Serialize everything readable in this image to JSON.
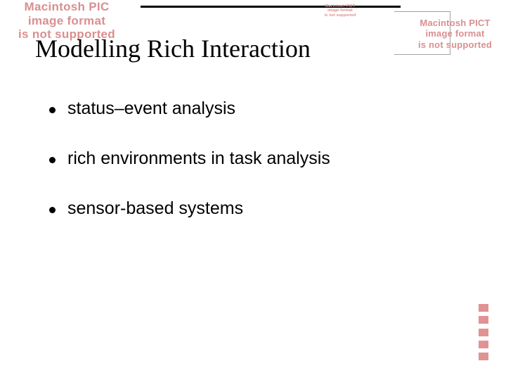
{
  "error_message": {
    "line1": "Macintosh PICT",
    "line2": "image format",
    "line3": "is not supported"
  },
  "error_top_left": {
    "line1": "Macintosh PIC",
    "line2": "image format",
    "line3": "is not supported"
  },
  "slide": {
    "title": "Modelling Rich Interaction",
    "bullets": [
      "status–event analysis",
      "rich environments in task analysis",
      "sensor-based systems"
    ]
  },
  "colors": {
    "error_text": "#da8f8f",
    "background": "#ffffff",
    "text": "#000000",
    "border": "#a3a3a3",
    "pink_bar": "#e19292"
  }
}
